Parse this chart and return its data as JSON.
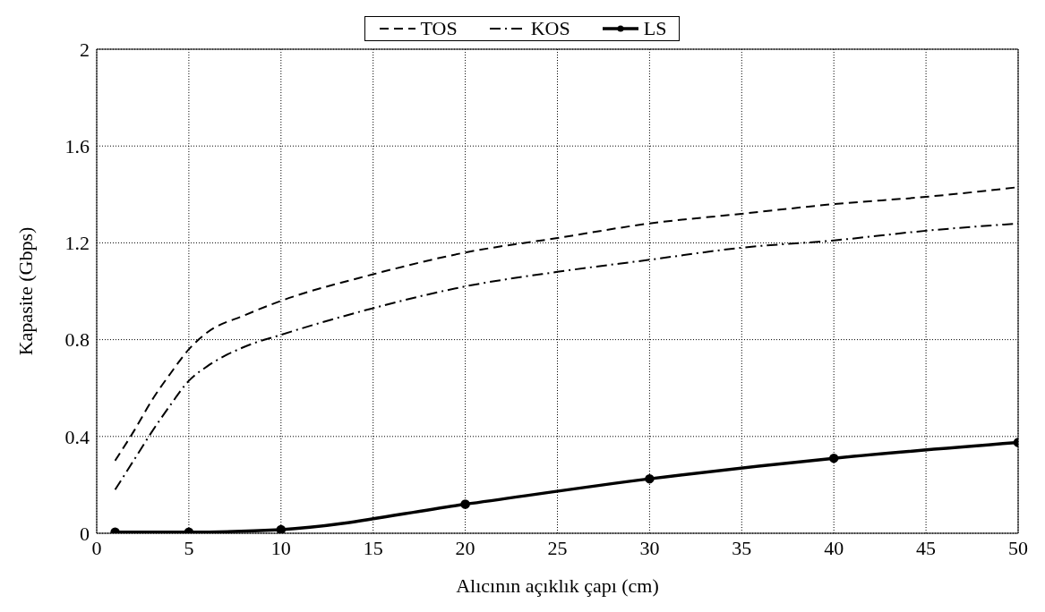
{
  "chart_data": {
    "type": "line",
    "xlabel": "Alıcının açıklık çapı (cm)",
    "ylabel": "Kapasite (Gbps)",
    "xlim": [
      0,
      50
    ],
    "xticks": [
      0,
      5,
      10,
      15,
      20,
      25,
      30,
      35,
      40,
      45,
      50
    ],
    "ylim": [
      0,
      2
    ],
    "yticks": [
      0,
      0.4,
      0.8,
      1.2,
      1.6,
      2
    ],
    "grid": true,
    "legend": "top",
    "series": [
      {
        "name": "TOS",
        "color": "#000000",
        "line_style": "dashed",
        "marker": "none",
        "x": [
          1,
          2,
          3,
          4,
          5,
          6,
          8,
          10,
          15,
          20,
          25,
          30,
          35,
          40,
          45,
          50
        ],
        "values": [
          0.3,
          0.42,
          0.55,
          0.66,
          0.76,
          0.83,
          0.9,
          0.96,
          1.07,
          1.16,
          1.22,
          1.28,
          1.32,
          1.36,
          1.39,
          1.43
        ]
      },
      {
        "name": "KOS",
        "color": "#000000",
        "line_style": "dashdot",
        "marker": "none",
        "x": [
          1,
          2,
          3,
          4,
          5,
          6,
          8,
          10,
          15,
          20,
          25,
          30,
          35,
          40,
          45,
          50
        ],
        "values": [
          0.18,
          0.3,
          0.42,
          0.53,
          0.63,
          0.69,
          0.77,
          0.82,
          0.93,
          1.02,
          1.08,
          1.13,
          1.18,
          1.21,
          1.25,
          1.28
        ]
      },
      {
        "name": "LS",
        "color": "#000000",
        "line_style": "solid",
        "marker": "circle",
        "x": [
          1,
          5,
          10,
          20,
          30,
          40,
          50
        ],
        "values": [
          0.005,
          0.005,
          0.015,
          0.12,
          0.225,
          0.31,
          0.375
        ]
      }
    ]
  }
}
